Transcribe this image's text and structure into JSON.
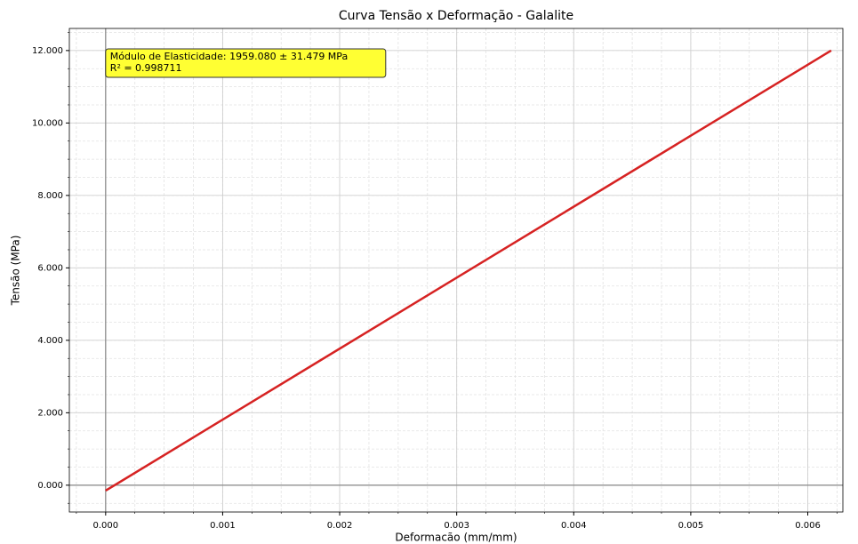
{
  "chart_data": {
    "type": "line",
    "title": "Curva Tensão x Deformação - Galalite",
    "xlabel": "Deformacão (mm/mm)",
    "ylabel": "Tensão (MPa)",
    "annotation": [
      "Módulo de Elasticidade: 1959.080 ± 31.479 MPa",
      "R² = 0.998711"
    ],
    "x": [
      0,
      0.0062
    ],
    "series": [
      {
        "name": "Tensão",
        "color": "#d62222",
        "values": [
          -0.15,
          12.0
        ]
      }
    ],
    "xlim": [
      -0.00031,
      0.0063
    ],
    "ylim": [
      -0.74,
      12.61
    ],
    "xticks": [
      {
        "value": 0,
        "label": "0.000"
      },
      0.001,
      0.002,
      0.003,
      0.004,
      0.005,
      0.006
    ],
    "yticks": [
      {
        "value": 0,
        "label": "0.000"
      },
      {
        "value": 2,
        "label": "2.000"
      },
      {
        "value": 4,
        "label": "4.000"
      },
      {
        "value": 6,
        "label": "6.000"
      },
      {
        "value": 8,
        "label": "8.000"
      },
      {
        "value": 10,
        "label": "10.000"
      },
      {
        "value": 12,
        "label": "12.000"
      }
    ],
    "grid": true,
    "minor_grid": true
  }
}
